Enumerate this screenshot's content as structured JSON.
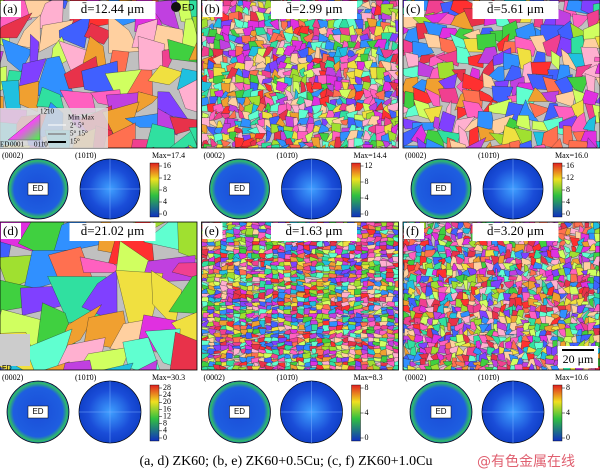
{
  "panels": [
    {
      "label": "(a)",
      "grain_size": "d̄=12.44 μm",
      "pole_1": "(0002)",
      "pole_2": "(101̄0)",
      "ed": "ED",
      "max": "Max=17.4",
      "ticks": [
        "16",
        "12",
        "8",
        "4",
        "0"
      ]
    },
    {
      "label": "(b)",
      "grain_size": "d̄=2.99 μm",
      "pole_1": "(0002)",
      "pole_2": "(101̄0)",
      "ed": "ED",
      "max": "Max=14.4",
      "ticks": [
        "12",
        "8",
        "4",
        "0"
      ]
    },
    {
      "label": "(c)",
      "grain_size": "d̄=5.61 μm",
      "pole_1": "(0002)",
      "pole_2": "(101̄0)",
      "ed": "ED",
      "max": "Max=16.0",
      "ticks": [
        "16",
        "12",
        "8",
        "4",
        "0"
      ]
    },
    {
      "label": "(d)",
      "grain_size": "d̄=21.02 μm",
      "pole_1": "(0002)",
      "pole_2": "(101̄0)",
      "ed": "ED",
      "max": "Max=30.3",
      "ticks": [
        "28",
        "24",
        "20",
        "16",
        "12",
        "8",
        "4",
        "0"
      ]
    },
    {
      "label": "(e)",
      "grain_size": "d̄=1.63 μm",
      "pole_1": "(0002)",
      "pole_2": "(101̄0)",
      "ed": "ED",
      "max": "Max=8.3",
      "ticks": [
        "8",
        "4",
        "0"
      ]
    },
    {
      "label": "(f)",
      "grain_size": "d̄=3.20 μm",
      "pole_1": "(0002)",
      "pole_2": "(101̄0)",
      "ed": "ED",
      "max": "Max=10.6",
      "ticks": [
        "8",
        "4",
        "0"
      ]
    }
  ],
  "legend": {
    "ed_marker": "ED",
    "dir_top": "12̄10",
    "dir_left": "0001",
    "dir_right": "011̄0",
    "ed": "ED",
    "minmax": "Min Max",
    "row1": "2°  5°",
    "row2": "5°  15°",
    "row3": "15°"
  },
  "ed_d": "ED",
  "scale_bar": "20 μm",
  "caption": "(a, d) ZK60; (b, e) ZK60+0.5Cu; (c, f) ZK60+1.0Cu",
  "watermark": "@有色金属在线"
}
